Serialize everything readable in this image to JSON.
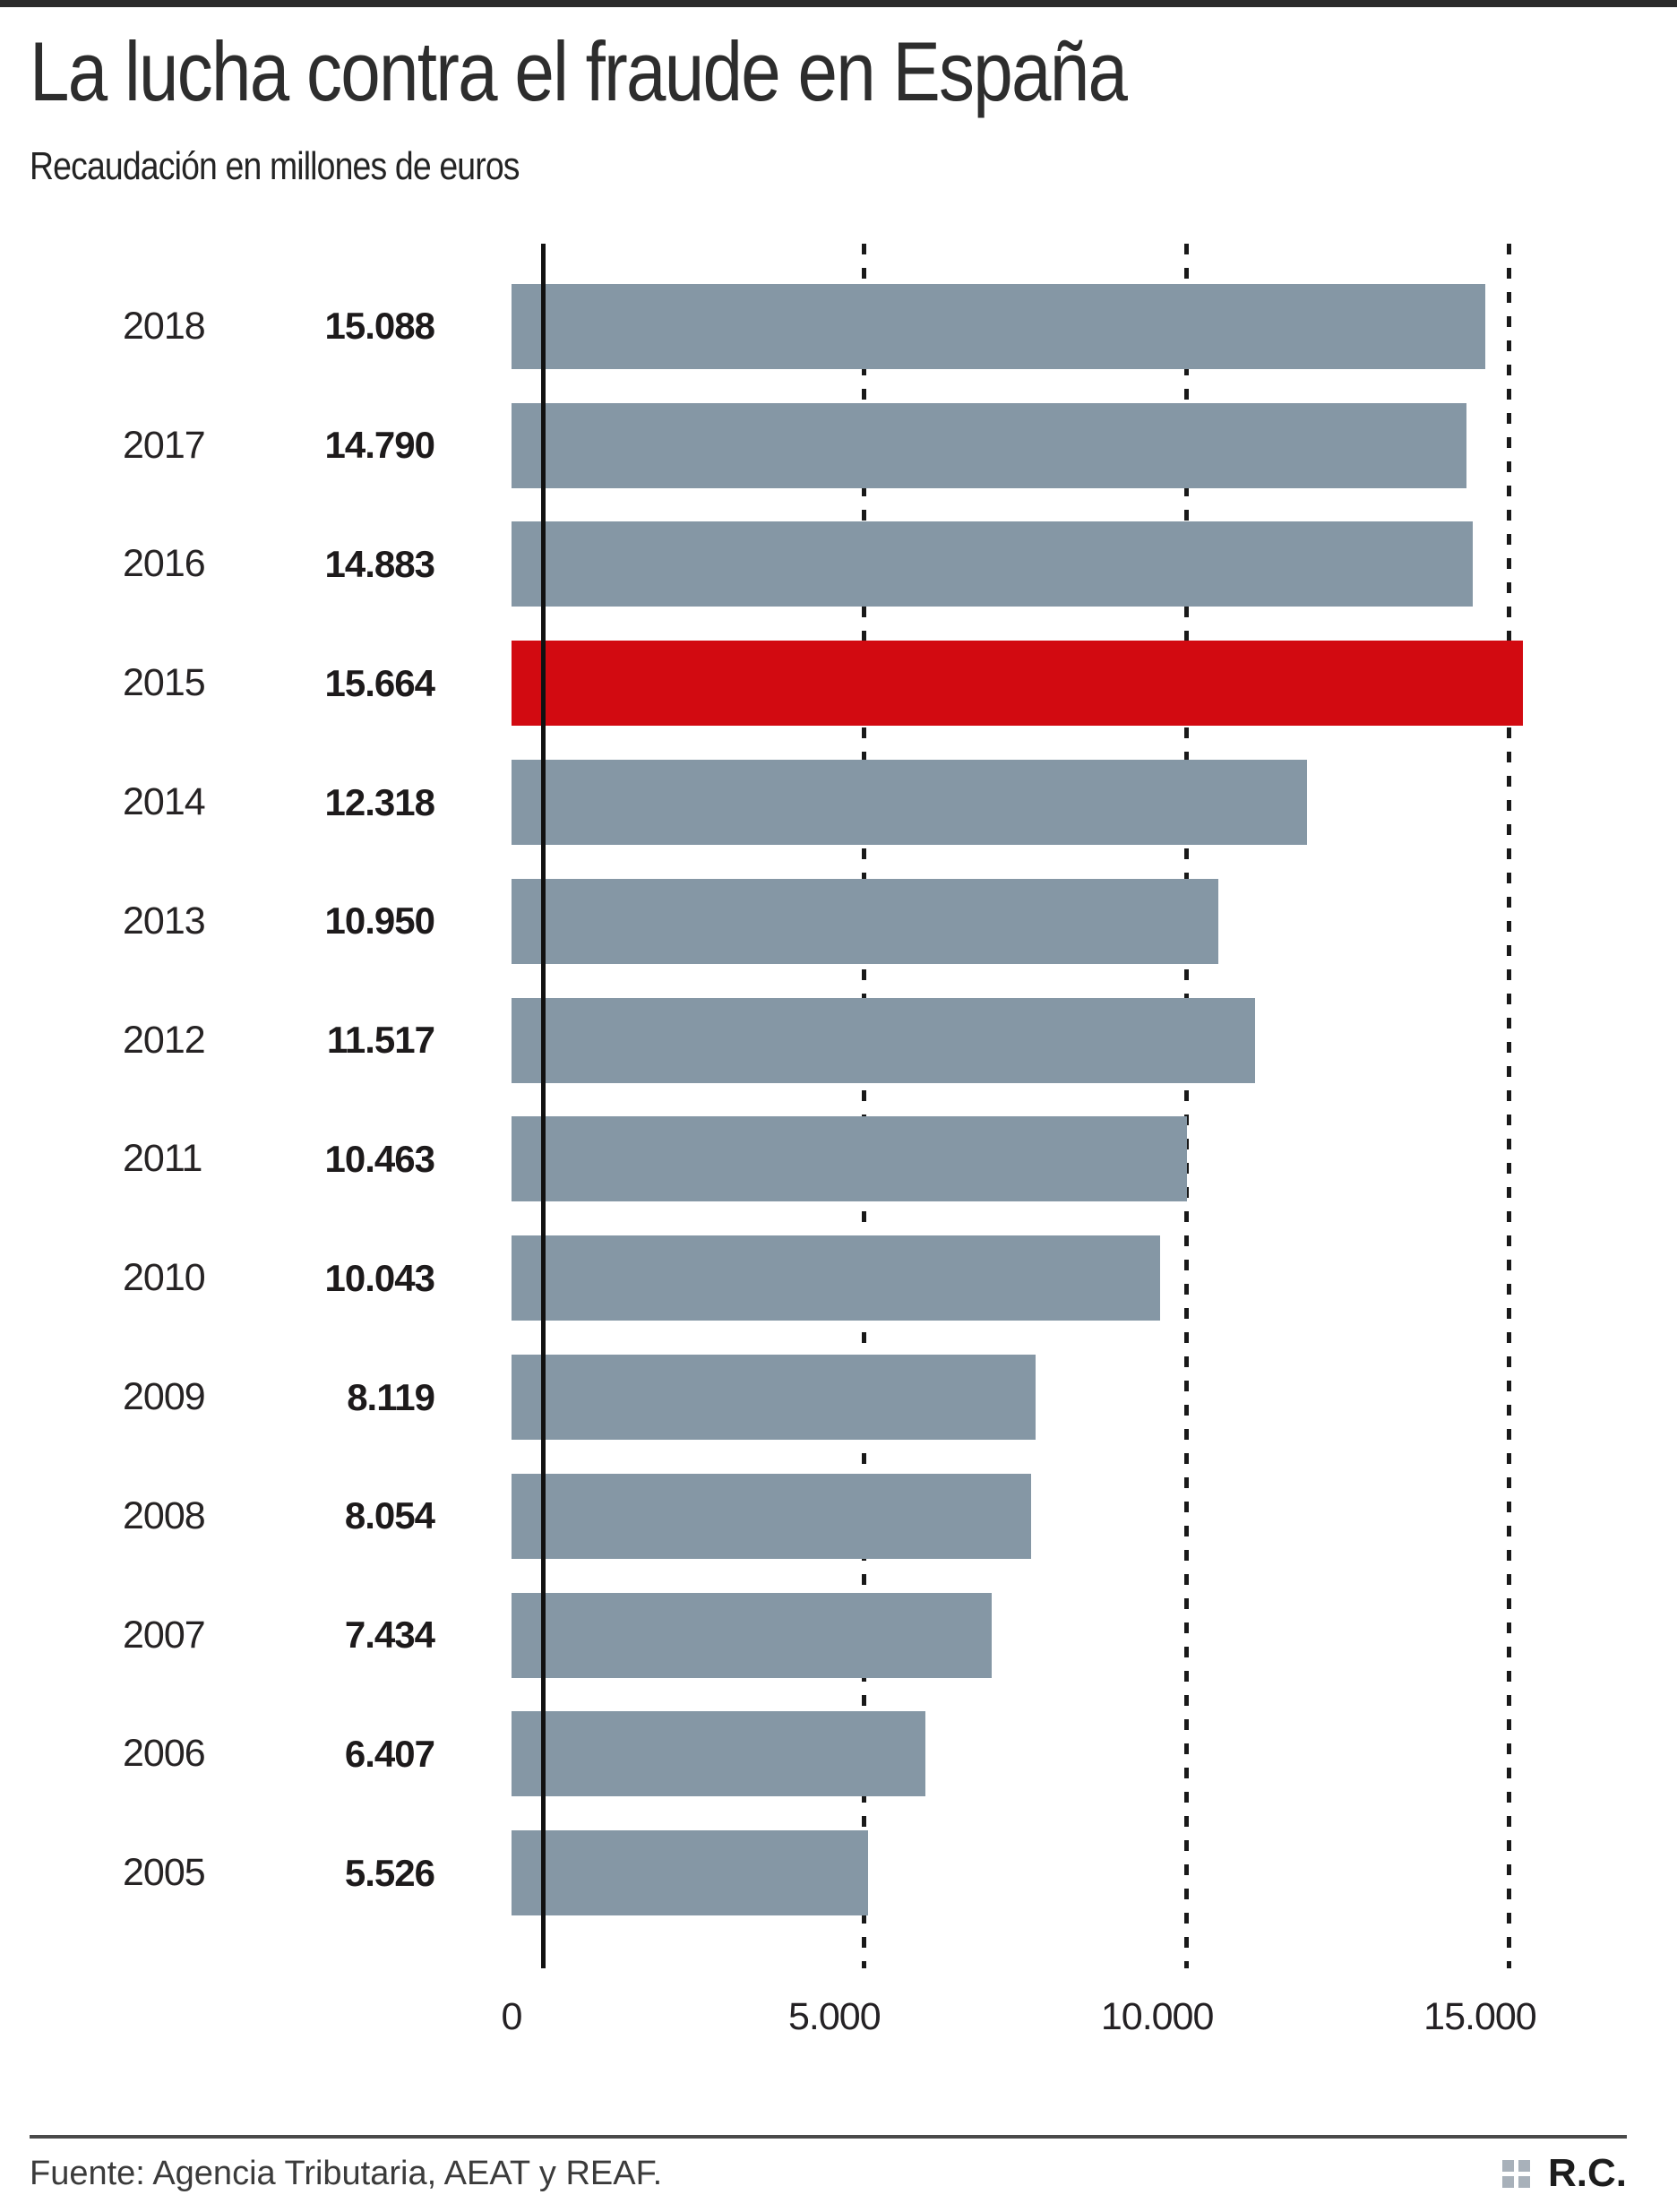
{
  "header": {
    "title": "La lucha contra el fraude en España",
    "subtitle": "Recaudación en millones de euros"
  },
  "chart_data": {
    "type": "bar",
    "orientation": "horizontal",
    "title": "La lucha contra el fraude en España",
    "subtitle": "Recaudación en millones de euros",
    "categories": [
      "2018",
      "2017",
      "2016",
      "2015",
      "2014",
      "2013",
      "2012",
      "2011",
      "2010",
      "2009",
      "2008",
      "2007",
      "2006",
      "2005"
    ],
    "values": [
      15088,
      14790,
      14883,
      15664,
      12318,
      10950,
      11517,
      10463,
      10043,
      8119,
      8054,
      7434,
      6407,
      5526
    ],
    "value_labels": [
      "15.088",
      "14.790",
      "14.883",
      "15.664",
      "12.318",
      "10.950",
      "11.517",
      "10.463",
      "10.043",
      "8.119",
      "8.054",
      "7.434",
      "6.407",
      "5.526"
    ],
    "highlight_index": 3,
    "highlight_category": "2015",
    "tick_values": [
      0,
      5000,
      10000,
      15000
    ],
    "tick_labels": [
      "0",
      "5.000",
      "10.000",
      "15.000"
    ],
    "xlim": [
      0,
      15750
    ],
    "grid": "dashed-vertical",
    "legend": "none",
    "bar_color": "#8597a5",
    "highlight_color": "#d20a11"
  },
  "footer": {
    "source": "Fuente: Agencia Tributaria, AEAT y REAF.",
    "credit": "R.C."
  }
}
